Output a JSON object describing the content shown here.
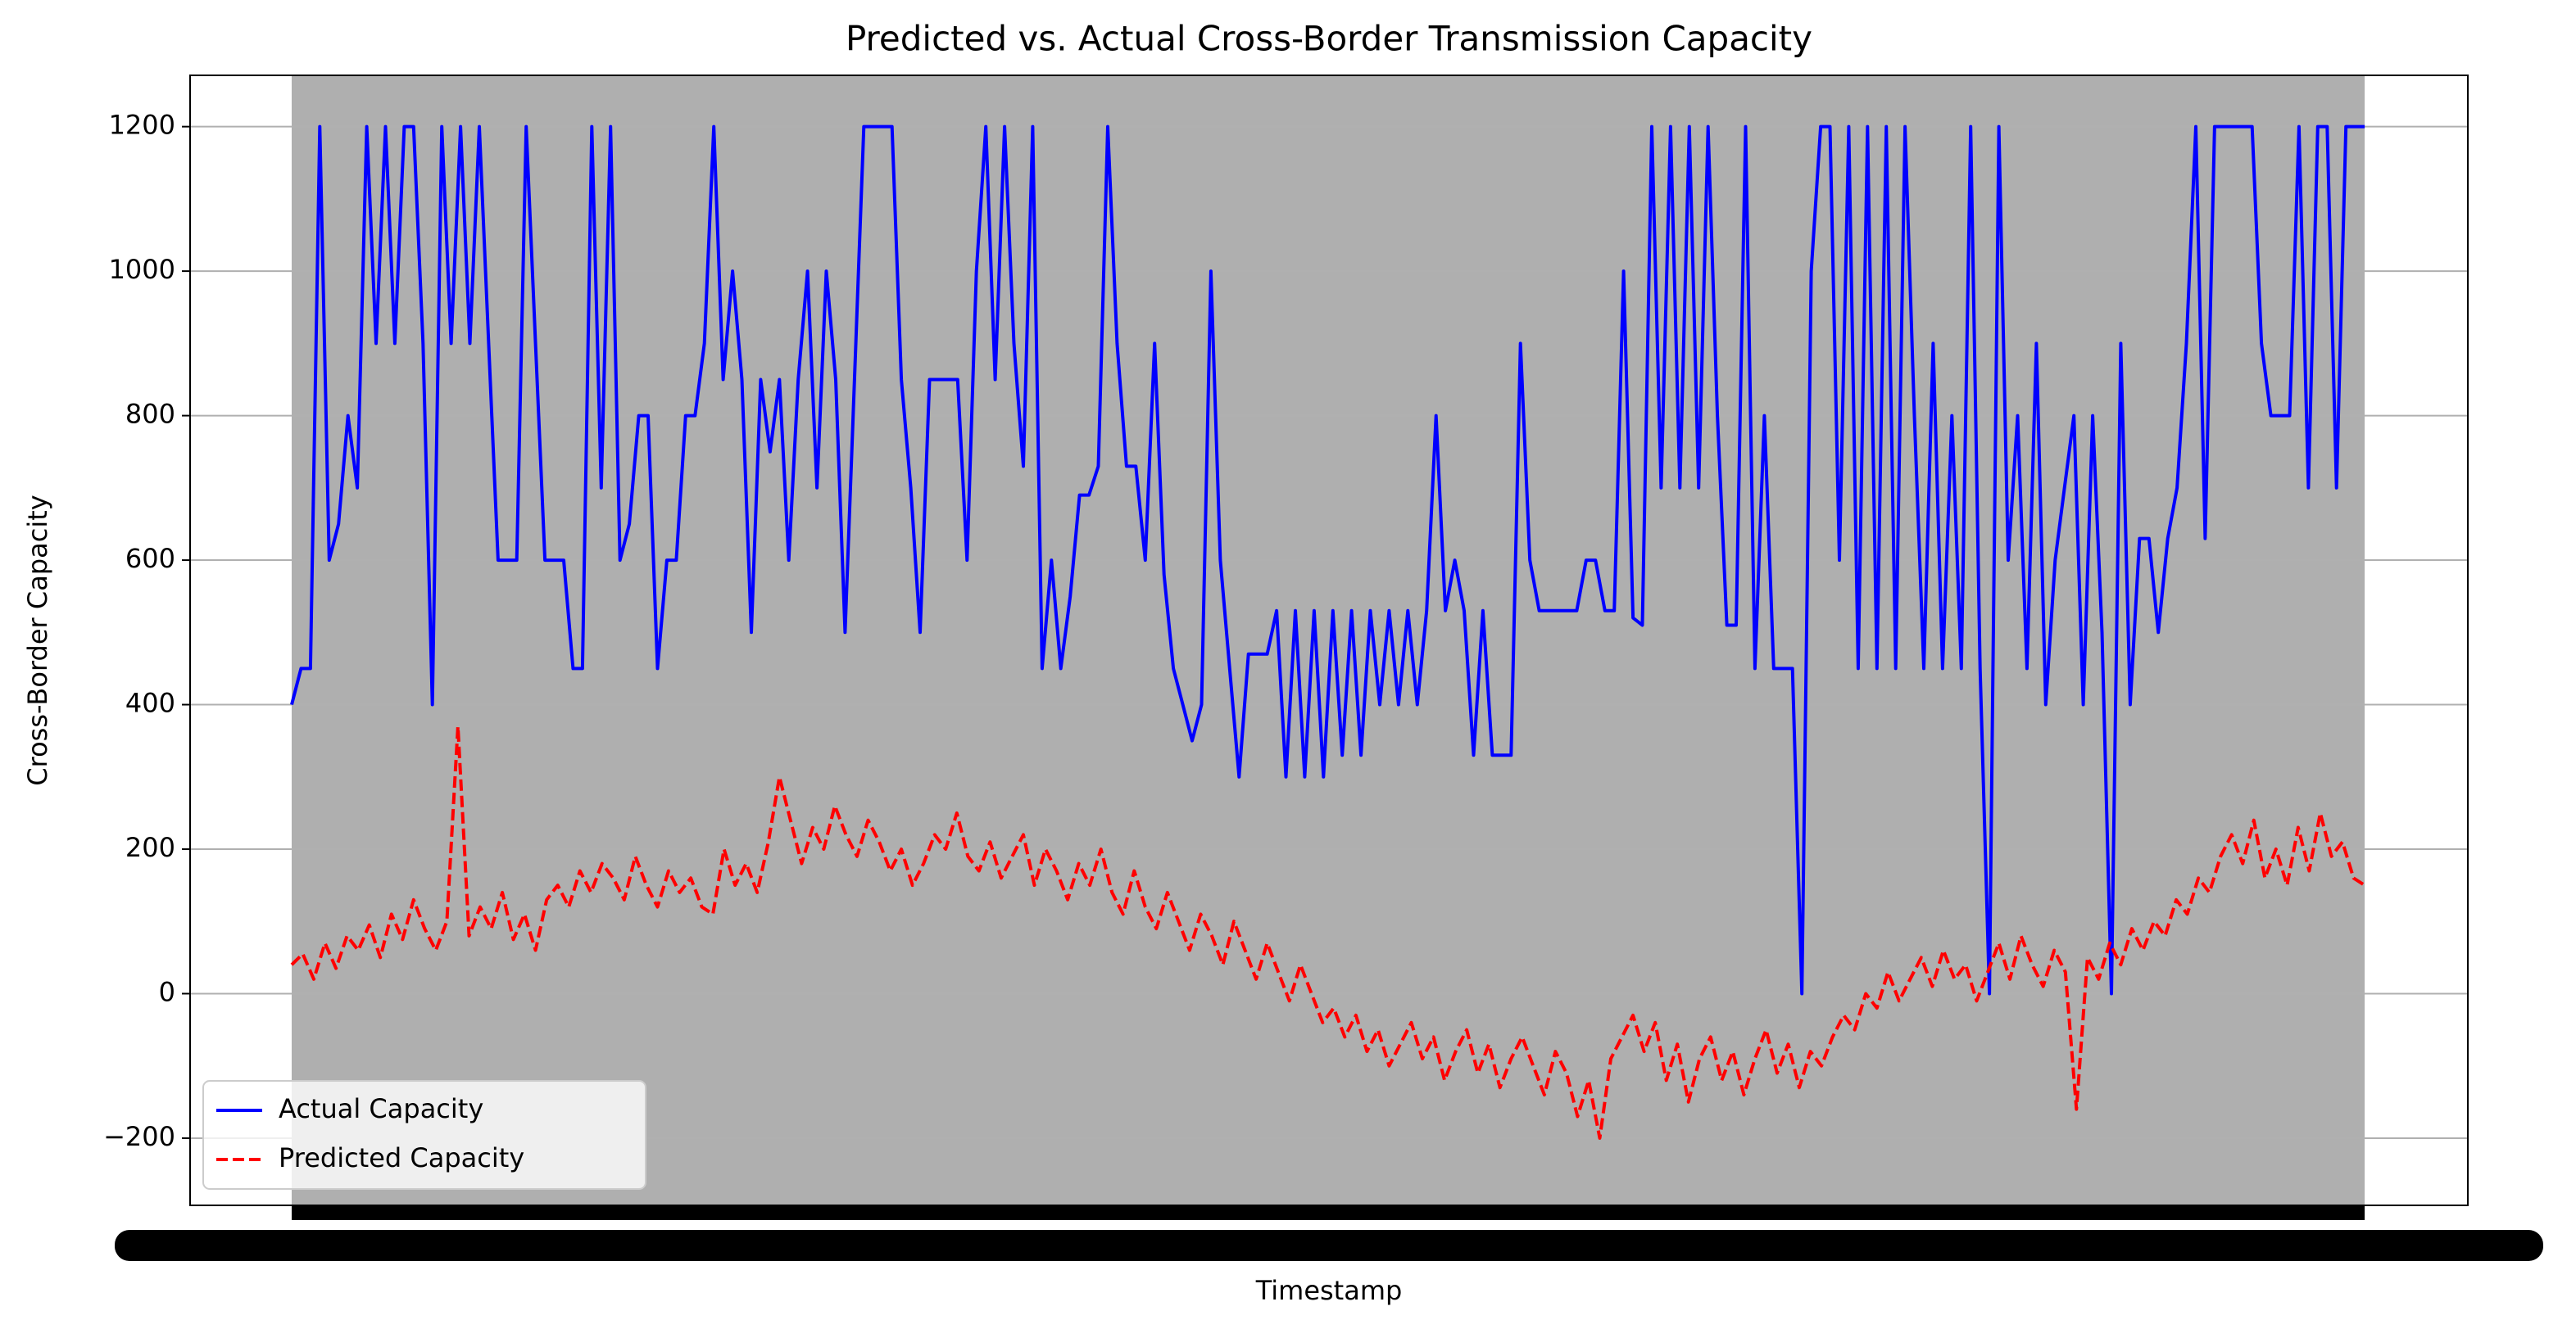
{
  "chart_data": {
    "type": "line",
    "title": "Predicted vs. Actual Cross-Border Transmission Capacity",
    "x_label": "Timestamp",
    "y_label": "Cross-Border Capacity",
    "ylim": [
      -293,
      1271
    ],
    "yticks": [
      {
        "value": -200,
        "label": "−200"
      },
      0,
      200,
      400,
      600,
      800,
      1000,
      1200
    ],
    "grid": true,
    "legend": "lower left",
    "series": [
      {
        "name": "Actual Capacity",
        "color": "#0000ff",
        "dash": "solid",
        "values": [
          400,
          450,
          450,
          1200,
          600,
          650,
          800,
          700,
          1200,
          900,
          1200,
          900,
          1200,
          1200,
          900,
          400,
          1200,
          900,
          1200,
          900,
          1200,
          900,
          600,
          600,
          600,
          1200,
          900,
          600,
          600,
          600,
          450,
          450,
          1200,
          700,
          1200,
          600,
          650,
          800,
          800,
          450,
          600,
          600,
          800,
          800,
          900,
          1200,
          850,
          1000,
          850,
          500,
          850,
          750,
          850,
          600,
          850,
          1000,
          700,
          1000,
          850,
          500,
          850,
          1200,
          1200,
          1200,
          1200,
          850,
          700,
          500,
          850,
          850,
          850,
          850,
          600,
          1000,
          1200,
          850,
          1200,
          900,
          730,
          1200,
          450,
          600,
          450,
          550,
          690,
          690,
          730,
          1200,
          900,
          730,
          730,
          600,
          900,
          580,
          450,
          400,
          350,
          400,
          1000,
          600,
          450,
          300,
          470,
          470,
          470,
          530,
          300,
          530,
          300,
          530,
          300,
          530,
          330,
          530,
          330,
          530,
          400,
          530,
          400,
          530,
          400,
          530,
          800,
          530,
          600,
          530,
          330,
          530,
          330,
          330,
          330,
          900,
          600,
          530,
          530,
          530,
          530,
          530,
          600,
          600,
          530,
          530,
          1000,
          520,
          510,
          1200,
          700,
          1200,
          700,
          1200,
          700,
          1200,
          800,
          510,
          510,
          1200,
          450,
          800,
          450,
          450,
          450,
          0,
          1000,
          1200,
          1200,
          600,
          1200,
          450,
          1200,
          450,
          1200,
          450,
          1200,
          800,
          450,
          900,
          450,
          800,
          450,
          1200,
          450,
          0,
          1200,
          600,
          800,
          450,
          900,
          400,
          600,
          700,
          800,
          400,
          800,
          500,
          0,
          900,
          400,
          630,
          630,
          500,
          630,
          700,
          900,
          1200,
          630,
          1200,
          1200,
          1200,
          1200,
          1200,
          900,
          800,
          800,
          800,
          1200,
          700,
          1200,
          1200,
          700,
          1200,
          1200,
          1200
        ]
      },
      {
        "name": "Predicted Capacity",
        "color": "#ff0000",
        "dash": "dashed",
        "values": [
          40,
          55,
          20,
          70,
          35,
          80,
          60,
          95,
          50,
          110,
          75,
          130,
          90,
          60,
          100,
          370,
          80,
          120,
          90,
          140,
          75,
          110,
          60,
          130,
          150,
          120,
          170,
          140,
          180,
          160,
          130,
          190,
          150,
          120,
          170,
          140,
          160,
          120,
          110,
          200,
          150,
          180,
          140,
          210,
          300,
          240,
          180,
          230,
          200,
          260,
          220,
          190,
          240,
          210,
          170,
          200,
          150,
          180,
          220,
          200,
          250,
          190,
          170,
          210,
          160,
          190,
          220,
          150,
          200,
          170,
          130,
          180,
          150,
          200,
          140,
          110,
          170,
          120,
          90,
          140,
          100,
          60,
          110,
          80,
          40,
          100,
          60,
          20,
          70,
          30,
          -10,
          40,
          0,
          -40,
          -20,
          -60,
          -30,
          -80,
          -50,
          -100,
          -70,
          -40,
          -90,
          -60,
          -120,
          -80,
          -50,
          -110,
          -70,
          -130,
          -90,
          -60,
          -100,
          -140,
          -80,
          -110,
          -170,
          -120,
          -200,
          -90,
          -60,
          -30,
          -80,
          -40,
          -120,
          -70,
          -150,
          -90,
          -60,
          -120,
          -80,
          -140,
          -90,
          -50,
          -110,
          -70,
          -130,
          -80,
          -100,
          -60,
          -30,
          -50,
          0,
          -20,
          30,
          -10,
          20,
          50,
          10,
          60,
          20,
          40,
          -10,
          30,
          70,
          20,
          80,
          40,
          10,
          60,
          30,
          -160,
          50,
          20,
          70,
          40,
          90,
          60,
          100,
          80,
          130,
          110,
          160,
          140,
          190,
          220,
          180,
          240,
          160,
          200,
          150,
          230,
          170,
          250,
          190,
          210,
          160,
          150
        ]
      }
    ]
  }
}
